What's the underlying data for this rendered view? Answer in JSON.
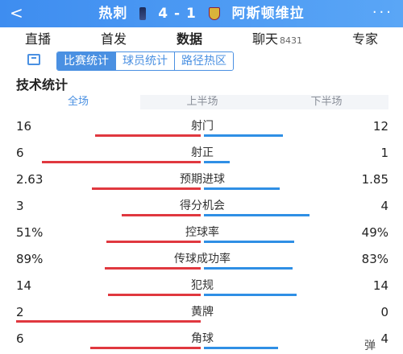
{
  "header": {
    "back_icon": "chevron-left-icon",
    "home_team": "热刺",
    "score": "4 - 1",
    "away_team": "阿斯顿维拉",
    "more_label": "···"
  },
  "main_tabs": [
    {
      "label": "直播",
      "active": false
    },
    {
      "label": "首发",
      "active": false
    },
    {
      "label": "数据",
      "active": true
    },
    {
      "label": "聊天",
      "sub": "8431",
      "active": false
    },
    {
      "label": "专家",
      "active": false
    }
  ],
  "sub_tabs": [
    {
      "label": "比赛统计",
      "active": true
    },
    {
      "label": "球员统计",
      "active": false
    },
    {
      "label": "路径热区",
      "active": false
    }
  ],
  "section_title": "技术统计",
  "period_tabs": [
    {
      "label": "全场",
      "active": true
    },
    {
      "label": "上半场",
      "active": false
    },
    {
      "label": "下半场",
      "active": false
    }
  ],
  "colors": {
    "home": "#e0383f",
    "away": "#2f8fe5",
    "accent": "#4a90e2"
  },
  "stats": [
    {
      "label": "射门",
      "home": "16",
      "away": "12",
      "home_share": 0.57,
      "away_share": 0.43
    },
    {
      "label": "射正",
      "home": "6",
      "away": "1",
      "home_share": 0.86,
      "away_share": 0.14
    },
    {
      "label": "预期进球",
      "home": "2.63",
      "away": "1.85",
      "home_share": 0.59,
      "away_share": 0.41
    },
    {
      "label": "得分机会",
      "home": "3",
      "away": "4",
      "home_share": 0.43,
      "away_share": 0.57
    },
    {
      "label": "控球率",
      "home": "51%",
      "away": "49%",
      "home_share": 0.51,
      "away_share": 0.49
    },
    {
      "label": "传球成功率",
      "home": "89%",
      "away": "83%",
      "home_share": 0.52,
      "away_share": 0.48
    },
    {
      "label": "犯规",
      "home": "14",
      "away": "14",
      "home_share": 0.5,
      "away_share": 0.5
    },
    {
      "label": "黄牌",
      "home": "2",
      "away": "0",
      "home_share": 1.0,
      "away_share": 0.0
    },
    {
      "label": "角球",
      "home": "6",
      "away": "4",
      "home_share": 0.6,
      "away_share": 0.4
    }
  ],
  "float_button": "弹"
}
